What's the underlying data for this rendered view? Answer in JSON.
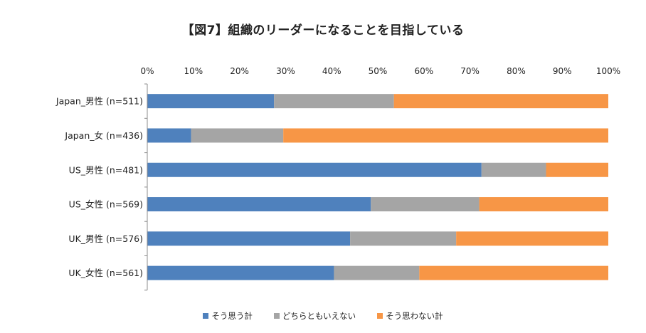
{
  "chart_data": {
    "type": "bar",
    "orientation": "horizontal",
    "stacked": "percent",
    "title": "【図7】組織のリーダーになることを目指している",
    "categories": [
      "Japan_男性 (n=511)",
      "Japan_女 (n=436)",
      "US_男性 (n=481)",
      "US_女性 (n=569)",
      "UK_男性 (n=576)",
      "UK_女性 (n=561)"
    ],
    "series": [
      {
        "name": "そう思う計",
        "color": "#4f81bd",
        "values": [
          27.5,
          9.5,
          72.5,
          48.5,
          44.0,
          40.5
        ]
      },
      {
        "name": "どちらともいえない",
        "color": "#a5a5a5",
        "values": [
          26.0,
          20.0,
          14.0,
          23.5,
          23.0,
          18.5
        ]
      },
      {
        "name": "そう思わない計",
        "color": "#f79646",
        "values": [
          46.5,
          70.5,
          13.5,
          28.0,
          33.0,
          41.0
        ]
      }
    ],
    "x_ticks": [
      "0%",
      "10%",
      "20%",
      "30%",
      "40%",
      "50%",
      "60%",
      "70%",
      "80%",
      "90%",
      "100%"
    ],
    "xlim": [
      0,
      100
    ],
    "grid": false,
    "legend_position": "bottom"
  }
}
